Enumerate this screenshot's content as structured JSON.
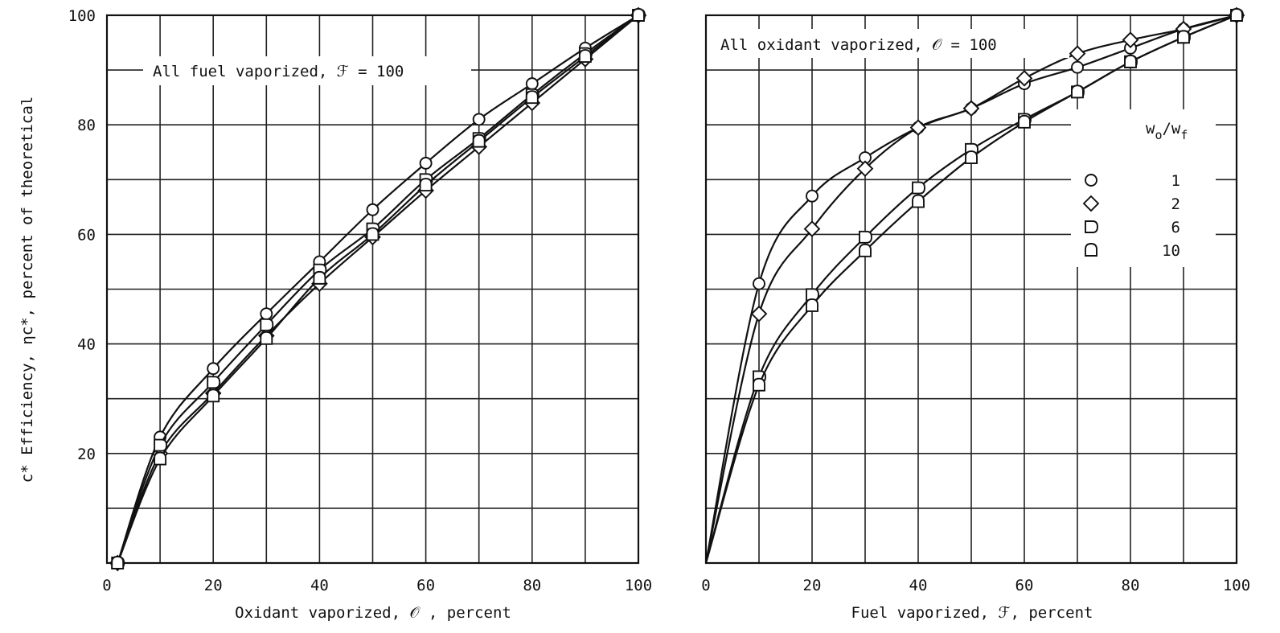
{
  "chart_data": [
    {
      "type": "line",
      "title": "",
      "annotation": "All fuel vaporized, ℱ = 100",
      "xlabel": "Oxidant vaporized, 𝒪 , percent",
      "ylabel": "c* Efficiency, ηc*, percent of theoretical",
      "xlim": [
        0,
        100
      ],
      "ylim": [
        0,
        100
      ],
      "xticks": [
        "0",
        "20",
        "40",
        "60",
        "80",
        "100"
      ],
      "yticks": [
        "20",
        "40",
        "60",
        "80",
        "100"
      ],
      "grid": true,
      "series": [
        {
          "name": "1",
          "marker": "circle",
          "x": [
            2,
            10,
            20,
            30,
            40,
            50,
            60,
            70,
            80,
            90,
            100
          ],
          "y": [
            0,
            23,
            35.5,
            45.5,
            55,
            64.5,
            73,
            81,
            87.5,
            94,
            100
          ]
        },
        {
          "name": "2",
          "marker": "diamond",
          "x": [
            2,
            10,
            20,
            30,
            40,
            50,
            60,
            70,
            80,
            90,
            100
          ],
          "y": [
            0,
            20,
            31,
            41.5,
            51,
            59.5,
            68,
            76,
            84,
            92,
            100
          ]
        },
        {
          "name": "6",
          "marker": "d-shape",
          "x": [
            2,
            10,
            20,
            30,
            40,
            50,
            60,
            70,
            80,
            90,
            100
          ],
          "y": [
            0,
            21.5,
            33,
            43.5,
            53.5,
            61,
            70,
            77.5,
            85.5,
            93,
            100
          ]
        },
        {
          "name": "10",
          "marker": "arch",
          "x": [
            2,
            10,
            20,
            30,
            40,
            50,
            60,
            70,
            80,
            90,
            100
          ],
          "y": [
            0,
            19,
            30.5,
            41,
            52,
            60,
            69,
            77,
            85,
            92.5,
            100
          ]
        }
      ]
    },
    {
      "type": "line",
      "title": "",
      "annotation": "All oxidant vaporized, 𝒪 = 100",
      "xlabel": "Fuel vaporized, ℱ, percent",
      "ylabel": "",
      "xlim": [
        0,
        100
      ],
      "ylim": [
        0,
        100
      ],
      "xticks": [
        "0",
        "20",
        "40",
        "60",
        "80",
        "100"
      ],
      "yticks": [],
      "grid": true,
      "legend": {
        "title_main": "w",
        "title_sub1": "o",
        "title_sep": "/w",
        "title_sub2": "f",
        "placement": "right",
        "entries": [
          {
            "symbol": "circle",
            "label": "1"
          },
          {
            "symbol": "diamond",
            "label": "2"
          },
          {
            "symbol": "d-shape",
            "label": "6"
          },
          {
            "symbol": "arch",
            "label": "10"
          }
        ]
      },
      "series": [
        {
          "name": "1",
          "marker": "circle",
          "x": [
            0,
            10,
            20,
            30,
            40,
            50,
            60,
            70,
            80,
            90,
            100
          ],
          "y": [
            0,
            51,
            67,
            74,
            79.5,
            83,
            87.5,
            90.5,
            94,
            97.5,
            100
          ]
        },
        {
          "name": "2",
          "marker": "diamond",
          "x": [
            0,
            10,
            20,
            30,
            40,
            50,
            60,
            70,
            80,
            90,
            100
          ],
          "y": [
            0,
            45.5,
            61,
            72,
            79.5,
            83,
            88.5,
            93,
            95.5,
            97.5,
            100
          ]
        },
        {
          "name": "6",
          "marker": "d-shape",
          "x": [
            0,
            10,
            20,
            30,
            40,
            50,
            60,
            70,
            80,
            90,
            100
          ],
          "y": [
            0,
            34,
            49,
            59.5,
            68.5,
            75.5,
            81,
            86,
            91.5,
            96,
            100
          ]
        },
        {
          "name": "10",
          "marker": "arch",
          "x": [
            0,
            10,
            20,
            30,
            40,
            50,
            60,
            70,
            80,
            90,
            100
          ],
          "y": [
            0,
            32.5,
            47,
            57,
            66,
            74,
            80.5,
            86,
            91.5,
            96,
            100
          ]
        }
      ]
    }
  ]
}
